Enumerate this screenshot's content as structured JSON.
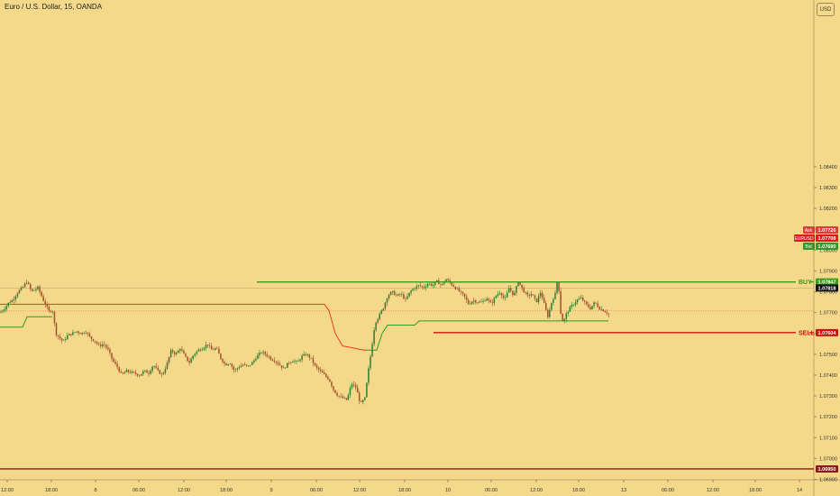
{
  "title": "Euro / U.S. Dollar, 15, OANDA",
  "currency": "USD",
  "colors": {
    "background": "#f5d98b",
    "up_candle": "#2e7d32",
    "down_candle": "#a0522d",
    "buy_line": "#3a9a1a",
    "sell_line": "#d01010",
    "lower_line": "#8b1a1a",
    "stop_line_red": "#e53b1f",
    "stop_line_green": "#2e9a2a",
    "price_line": "#f08060"
  },
  "chart_data": {
    "type": "candlestick",
    "symbol": "EURUSD",
    "interval": "15",
    "y_range": [
      1.0684,
      1.091
    ],
    "y_ticks": [
      "1.08400",
      "1.08300",
      "1.08200",
      "1.08100",
      "1.08000",
      "1.07900",
      "1.07800",
      "1.07700",
      "1.07600",
      "1.07500",
      "1.07400",
      "1.07300",
      "1.07200",
      "1.07100",
      "1.07000",
      "1.06900"
    ],
    "x_ticks": [
      "12:00",
      "18:00",
      "8",
      "06:00",
      "12:00",
      "18:00",
      "9",
      "06:00",
      "12:00",
      "18:00",
      "10",
      "06:00",
      "12:00",
      "18:00",
      "13",
      "06:00",
      "12:00",
      "18:00",
      "14"
    ],
    "path": [
      [
        0,
        1.077
      ],
      [
        5,
        1.0772
      ],
      [
        10,
        1.0775
      ],
      [
        14,
        1.0776
      ],
      [
        20,
        1.078
      ],
      [
        25,
        1.0782
      ],
      [
        30,
        1.0785
      ],
      [
        35,
        1.078
      ],
      [
        42,
        1.0782
      ],
      [
        48,
        1.0776
      ],
      [
        55,
        1.077
      ],
      [
        58,
        1.0772
      ],
      [
        62,
        1.076
      ],
      [
        66,
        1.0758
      ],
      [
        70,
        1.0756
      ],
      [
        75,
        1.0759
      ],
      [
        80,
        1.076
      ],
      [
        85,
        1.0761
      ],
      [
        90,
        1.076
      ],
      [
        95,
        1.0761
      ],
      [
        100,
        1.0758
      ],
      [
        106,
        1.0756
      ],
      [
        110,
        1.0754
      ],
      [
        115,
        1.0755
      ],
      [
        120,
        1.0752
      ],
      [
        125,
        1.0747
      ],
      [
        130,
        1.0744
      ],
      [
        135,
        1.074
      ],
      [
        140,
        1.0742
      ],
      [
        148,
        1.0741
      ],
      [
        155,
        1.074
      ],
      [
        160,
        1.0742
      ],
      [
        165,
        1.0741
      ],
      [
        170,
        1.0745
      ],
      [
        175,
        1.0742
      ],
      [
        180,
        1.074
      ],
      [
        185,
        1.0745
      ],
      [
        190,
        1.0752
      ],
      [
        195,
        1.075
      ],
      [
        200,
        1.0753
      ],
      [
        205,
        1.0749
      ],
      [
        210,
        1.0746
      ],
      [
        215,
        1.075
      ],
      [
        220,
        1.0752
      ],
      [
        225,
        1.0753
      ],
      [
        230,
        1.0755
      ],
      [
        235,
        1.0752
      ],
      [
        240,
        1.0753
      ],
      [
        245,
        1.0748
      ],
      [
        250,
        1.0745
      ],
      [
        255,
        1.0746
      ],
      [
        260,
        1.0742
      ],
      [
        265,
        1.0744
      ],
      [
        270,
        1.0745
      ],
      [
        275,
        1.0744
      ],
      [
        280,
        1.0746
      ],
      [
        285,
        1.0749
      ],
      [
        290,
        1.0751
      ],
      [
        295,
        1.075
      ],
      [
        300,
        1.0748
      ],
      [
        305,
        1.0747
      ],
      [
        310,
        1.0745
      ],
      [
        315,
        1.0743
      ],
      [
        320,
        1.0746
      ],
      [
        325,
        1.0747
      ],
      [
        330,
        1.0746
      ],
      [
        335,
        1.0749
      ],
      [
        340,
        1.075
      ],
      [
        345,
        1.0748
      ],
      [
        350,
        1.0744
      ],
      [
        355,
        1.0742
      ],
      [
        360,
        1.074
      ],
      [
        365,
        1.0738
      ],
      [
        370,
        1.0733
      ],
      [
        375,
        1.073
      ],
      [
        380,
        1.0729
      ],
      [
        385,
        1.0728
      ],
      [
        390,
        1.0736
      ],
      [
        395,
        1.0734
      ],
      [
        400,
        1.0726
      ],
      [
        405,
        1.0729
      ],
      [
        408,
        1.074
      ],
      [
        412,
        1.0752
      ],
      [
        416,
        1.0765
      ],
      [
        420,
        1.0768
      ],
      [
        425,
        1.0772
      ],
      [
        430,
        1.0778
      ],
      [
        435,
        1.078
      ],
      [
        440,
        1.0778
      ],
      [
        445,
        1.0779
      ],
      [
        450,
        1.0776
      ],
      [
        455,
        1.078
      ],
      [
        460,
        1.0782
      ],
      [
        465,
        1.0783
      ],
      [
        470,
        1.0782
      ],
      [
        475,
        1.0784
      ],
      [
        480,
        1.0783
      ],
      [
        485,
        1.0785
      ],
      [
        490,
        1.0783
      ],
      [
        495,
        1.0786
      ],
      [
        500,
        1.0784
      ],
      [
        505,
        1.0782
      ],
      [
        510,
        1.078
      ],
      [
        515,
        1.0778
      ],
      [
        520,
        1.0774
      ],
      [
        525,
        1.0776
      ],
      [
        530,
        1.0775
      ],
      [
        535,
        1.0775
      ],
      [
        540,
        1.0777
      ],
      [
        545,
        1.0774
      ],
      [
        550,
        1.0778
      ],
      [
        555,
        1.078
      ],
      [
        560,
        1.0776
      ],
      [
        565,
        1.0782
      ],
      [
        570,
        1.0778
      ],
      [
        575,
        1.0785
      ],
      [
        580,
        1.0781
      ],
      [
        585,
        1.0778
      ],
      [
        590,
        1.0779
      ],
      [
        595,
        1.0775
      ],
      [
        600,
        1.078
      ],
      [
        605,
        1.0772
      ],
      [
        608,
        1.0768
      ],
      [
        612,
        1.0775
      ],
      [
        616,
        1.0779
      ],
      [
        619,
        1.0787
      ],
      [
        622,
        1.077
      ],
      [
        625,
        1.0765
      ],
      [
        628,
        1.0769
      ],
      [
        632,
        1.0772
      ],
      [
        636,
        1.0774
      ],
      [
        640,
        1.0776
      ],
      [
        645,
        1.0777
      ],
      [
        650,
        1.0774
      ],
      [
        655,
        1.0772
      ],
      [
        660,
        1.0775
      ],
      [
        665,
        1.0772
      ],
      [
        670,
        1.0771
      ],
      [
        676,
        1.0769
      ]
    ],
    "annotations": [
      {
        "label": "BUY",
        "price": "1.07847",
        "x_start": 285,
        "x_end": 903,
        "y": 1.07847,
        "color": "#3a9a1a"
      },
      {
        "label": "SELL",
        "price": "1.07604",
        "x_start": 481,
        "x_end": 903,
        "y": 1.07604,
        "color": "#d01010"
      },
      {
        "label": "",
        "price": "1.06950",
        "x_start": 0,
        "x_end": 903,
        "y": 1.0695,
        "color": "#8b1a1a"
      }
    ],
    "reference_line": {
      "price": "1.07818",
      "y": 1.07818
    },
    "current": {
      "symbol": "EURUSD",
      "ask": "1.07726",
      "mid": "1.07708",
      "bid": "1.07690",
      "ask_label": "Ask",
      "bid_label": "Bid"
    },
    "stop_lines": {
      "red": [
        [
          0,
          1.0774
        ],
        [
          360,
          1.0774
        ],
        [
          365,
          1.0771
        ],
        [
          372,
          1.076
        ],
        [
          380,
          1.0754
        ],
        [
          404,
          1.0752
        ],
        [
          406,
          1.0752
        ]
      ],
      "green_left": [
        [
          0,
          1.0763
        ],
        [
          25,
          1.0763
        ],
        [
          30,
          1.0768
        ],
        [
          58,
          1.0768
        ]
      ],
      "green_right": [
        [
          406,
          1.0752
        ],
        [
          418,
          1.0752
        ],
        [
          424,
          1.076
        ],
        [
          430,
          1.0764
        ],
        [
          460,
          1.0764
        ],
        [
          465,
          1.0766
        ],
        [
          675,
          1.0766
        ]
      ]
    }
  }
}
